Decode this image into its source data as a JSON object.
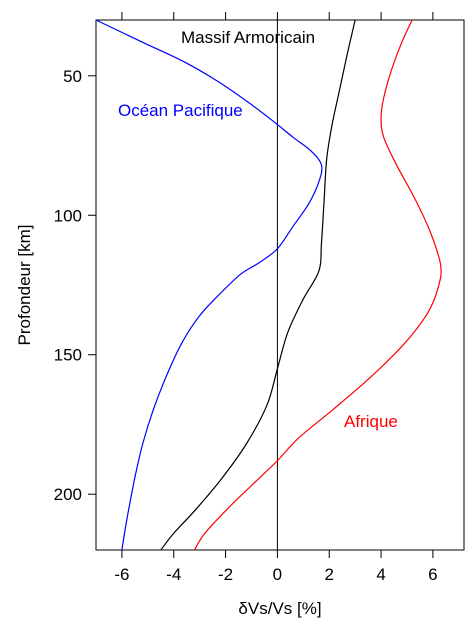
{
  "chart_data": {
    "type": "line",
    "title": "",
    "xlabel": "δVs/Vs [%]",
    "ylabel": "Profondeur [km]",
    "xlim": [
      -7,
      7.2
    ],
    "ylim": [
      220,
      30
    ],
    "x_ticks": [
      -6,
      -4,
      -2,
      0,
      2,
      4,
      6
    ],
    "y_ticks": [
      50,
      100,
      150,
      200
    ],
    "grid": false,
    "legend": "none",
    "zero_line": 0,
    "series": [
      {
        "name": "Océan Pacifique",
        "color": "#0000ff",
        "points": [
          [
            -7.0,
            30
          ],
          [
            -5.2,
            38
          ],
          [
            -3.6,
            45
          ],
          [
            -2.3,
            52
          ],
          [
            -1.2,
            59
          ],
          [
            -0.2,
            66
          ],
          [
            0.6,
            72
          ],
          [
            1.3,
            77
          ],
          [
            1.7,
            82
          ],
          [
            1.6,
            88
          ],
          [
            1.2,
            96
          ],
          [
            0.6,
            104
          ],
          [
            0.0,
            112
          ],
          [
            -0.7,
            117
          ],
          [
            -1.4,
            121
          ],
          [
            -2.2,
            128
          ],
          [
            -3.0,
            136
          ],
          [
            -3.7,
            146
          ],
          [
            -4.3,
            158
          ],
          [
            -4.8,
            170
          ],
          [
            -5.2,
            182
          ],
          [
            -5.5,
            194
          ],
          [
            -5.75,
            206
          ],
          [
            -5.9,
            214
          ],
          [
            -6.0,
            220
          ]
        ]
      },
      {
        "name": "Massif Armoricain",
        "color": "#000000",
        "points": [
          [
            3.0,
            30
          ],
          [
            2.7,
            42
          ],
          [
            2.4,
            55
          ],
          [
            2.1,
            68
          ],
          [
            1.9,
            80
          ],
          [
            1.8,
            95
          ],
          [
            1.7,
            110
          ],
          [
            1.6,
            120
          ],
          [
            1.0,
            130
          ],
          [
            0.4,
            142
          ],
          [
            0.0,
            155
          ],
          [
            -0.4,
            168
          ],
          [
            -1.2,
            182
          ],
          [
            -2.2,
            195
          ],
          [
            -3.2,
            206
          ],
          [
            -4.0,
            214
          ],
          [
            -4.5,
            220
          ]
        ]
      },
      {
        "name": "Afrique",
        "color": "#ff0000",
        "points": [
          [
            5.2,
            30
          ],
          [
            4.8,
            38
          ],
          [
            4.4,
            48
          ],
          [
            4.1,
            58
          ],
          [
            4.0,
            65
          ],
          [
            4.1,
            72
          ],
          [
            4.6,
            82
          ],
          [
            5.3,
            94
          ],
          [
            5.9,
            106
          ],
          [
            6.3,
            118
          ],
          [
            6.2,
            126
          ],
          [
            5.8,
            135
          ],
          [
            4.9,
            146
          ],
          [
            3.6,
            158
          ],
          [
            2.1,
            170
          ],
          [
            0.8,
            180
          ],
          [
            0.0,
            188
          ],
          [
            -0.9,
            196
          ],
          [
            -1.9,
            205
          ],
          [
            -2.8,
            214
          ],
          [
            -3.2,
            220
          ]
        ]
      }
    ]
  }
}
